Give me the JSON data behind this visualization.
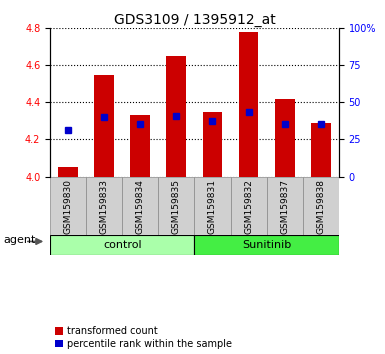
{
  "title": "GDS3109 / 1395912_at",
  "samples": [
    "GSM159830",
    "GSM159833",
    "GSM159834",
    "GSM159835",
    "GSM159831",
    "GSM159832",
    "GSM159837",
    "GSM159838"
  ],
  "red_values": [
    4.05,
    4.55,
    4.33,
    4.65,
    4.35,
    4.78,
    4.42,
    4.29
  ],
  "blue_values": [
    4.25,
    4.32,
    4.285,
    4.325,
    4.3,
    4.35,
    4.285,
    4.285
  ],
  "bar_bottom": 4.0,
  "ylim_left": [
    4.0,
    4.8
  ],
  "ylim_right": [
    0,
    100
  ],
  "yticks_left": [
    4.0,
    4.2,
    4.4,
    4.6,
    4.8
  ],
  "yticks_right": [
    0,
    25,
    50,
    75,
    100
  ],
  "ytick_labels_right": [
    "0",
    "25",
    "50",
    "75",
    "100%"
  ],
  "bar_color": "#cc0000",
  "blue_color": "#0000cc",
  "bar_width": 0.55,
  "blue_marker_size": 5,
  "groups": [
    {
      "label": "control",
      "indices": [
        0,
        1,
        2,
        3
      ],
      "color": "#aaffaa"
    },
    {
      "label": "Sunitinib",
      "indices": [
        4,
        5,
        6,
        7
      ],
      "color": "#44ee44"
    }
  ],
  "agent_label": "agent",
  "legend_red": "transformed count",
  "legend_blue": "percentile rank within the sample",
  "title_fontsize": 10,
  "tick_fontsize": 7,
  "label_fontsize": 8,
  "grid_color": "#000000",
  "xtick_bg_color": "#d0d0d0",
  "plot_bg": "#ffffff"
}
